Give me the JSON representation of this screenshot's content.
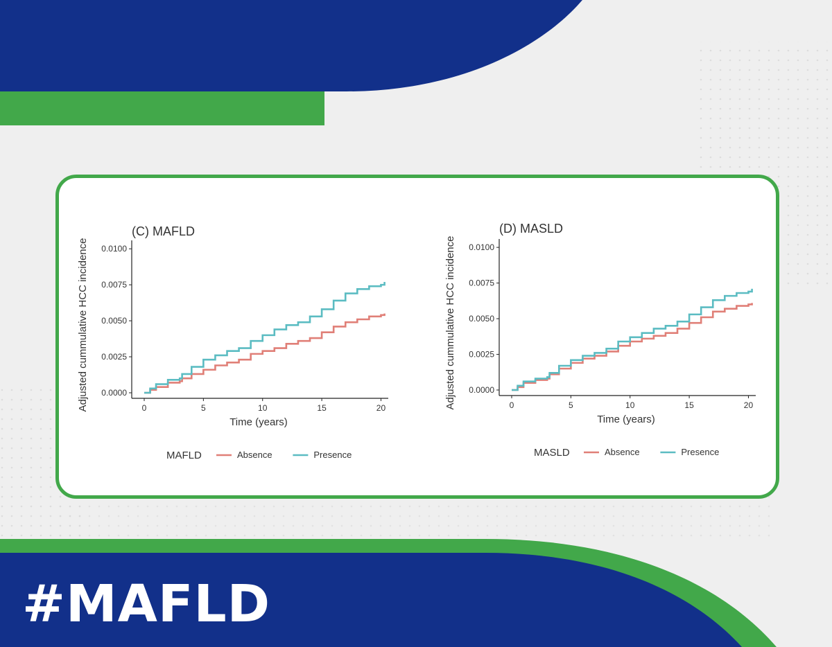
{
  "page": {
    "hashtag": "#MAFLD",
    "colors": {
      "navy": "#12308a",
      "green": "#42a84a",
      "card_border": "#42a84a"
    }
  },
  "chart_data": [
    {
      "type": "line",
      "title": "(C) MAFLD",
      "xlabel": "Time (years)",
      "ylabel": "Adjusted cummulative HCC incidence",
      "xlim": [
        0,
        20.5
      ],
      "ylim": [
        0,
        0.0102
      ],
      "x_ticks": [
        "0",
        "5",
        "10",
        "15",
        "20"
      ],
      "y_ticks": [
        "0.0000",
        "0.0025",
        "0.0050",
        "0.0075",
        "0.0100"
      ],
      "legend_title": "MAFLD",
      "legend_position": "bottom",
      "series": [
        {
          "name": "Absence",
          "color": "#e07f77",
          "points": [
            [
              0,
              0
            ],
            [
              0.5,
              0.0002
            ],
            [
              1,
              0.0004
            ],
            [
              2,
              0.0007
            ],
            [
              3,
              0.0008
            ],
            [
              3.2,
              0.001
            ],
            [
              4,
              0.0013
            ],
            [
              5,
              0.0016
            ],
            [
              6,
              0.0019
            ],
            [
              7,
              0.0021
            ],
            [
              8,
              0.0023
            ],
            [
              9,
              0.0027
            ],
            [
              10,
              0.0029
            ],
            [
              11,
              0.0031
            ],
            [
              12,
              0.0034
            ],
            [
              13,
              0.0036
            ],
            [
              14,
              0.0038
            ],
            [
              15,
              0.0042
            ],
            [
              16,
              0.0046
            ],
            [
              17,
              0.0049
            ],
            [
              18,
              0.0051
            ],
            [
              19,
              0.0053
            ],
            [
              20,
              0.0054
            ],
            [
              20.3,
              0.0055
            ]
          ]
        },
        {
          "name": "Presence",
          "color": "#5bbcc2",
          "points": [
            [
              0,
              0
            ],
            [
              0.5,
              0.0003
            ],
            [
              1,
              0.0006
            ],
            [
              2,
              0.0009
            ],
            [
              3,
              0.001
            ],
            [
              3.2,
              0.0013
            ],
            [
              4,
              0.0018
            ],
            [
              5,
              0.0023
            ],
            [
              6,
              0.0026
            ],
            [
              7,
              0.0029
            ],
            [
              8,
              0.0031
            ],
            [
              9,
              0.0036
            ],
            [
              10,
              0.004
            ],
            [
              11,
              0.0044
            ],
            [
              12,
              0.0047
            ],
            [
              13,
              0.0049
            ],
            [
              14,
              0.0053
            ],
            [
              15,
              0.0058
            ],
            [
              16,
              0.0064
            ],
            [
              17,
              0.0069
            ],
            [
              18,
              0.0072
            ],
            [
              19,
              0.0074
            ],
            [
              20,
              0.0075
            ],
            [
              20.3,
              0.0077
            ]
          ]
        }
      ]
    },
    {
      "type": "line",
      "title": "(D) MASLD",
      "xlabel": "Time (years)",
      "ylabel": "Adjusted cummulative HCC incidence",
      "xlim": [
        0,
        20.5
      ],
      "ylim": [
        0,
        0.0102
      ],
      "x_ticks": [
        "0",
        "5",
        "10",
        "15",
        "20"
      ],
      "y_ticks": [
        "0.0000",
        "0.0025",
        "0.0050",
        "0.0075",
        "0.0100"
      ],
      "legend_title": "MASLD",
      "legend_position": "bottom",
      "series": [
        {
          "name": "Absence",
          "color": "#e07f77",
          "points": [
            [
              0,
              0
            ],
            [
              0.5,
              0.0002
            ],
            [
              1,
              0.0005
            ],
            [
              2,
              0.0007
            ],
            [
              3,
              0.0008
            ],
            [
              3.2,
              0.0011
            ],
            [
              4,
              0.0015
            ],
            [
              5,
              0.0019
            ],
            [
              6,
              0.0022
            ],
            [
              7,
              0.0024
            ],
            [
              8,
              0.0027
            ],
            [
              9,
              0.0031
            ],
            [
              10,
              0.0034
            ],
            [
              11,
              0.0036
            ],
            [
              12,
              0.0038
            ],
            [
              13,
              0.004
            ],
            [
              14,
              0.0043
            ],
            [
              15,
              0.0047
            ],
            [
              16,
              0.0051
            ],
            [
              17,
              0.0055
            ],
            [
              18,
              0.0057
            ],
            [
              19,
              0.0059
            ],
            [
              20,
              0.006
            ],
            [
              20.3,
              0.0061
            ]
          ]
        },
        {
          "name": "Presence",
          "color": "#5bbcc2",
          "points": [
            [
              0,
              0
            ],
            [
              0.5,
              0.0003
            ],
            [
              1,
              0.0006
            ],
            [
              2,
              0.0008
            ],
            [
              3,
              0.0009
            ],
            [
              3.2,
              0.0012
            ],
            [
              4,
              0.0017
            ],
            [
              5,
              0.0021
            ],
            [
              6,
              0.0024
            ],
            [
              7,
              0.0026
            ],
            [
              8,
              0.0029
            ],
            [
              9,
              0.0034
            ],
            [
              10,
              0.0037
            ],
            [
              11,
              0.004
            ],
            [
              12,
              0.0043
            ],
            [
              13,
              0.0045
            ],
            [
              14,
              0.0048
            ],
            [
              15,
              0.0053
            ],
            [
              16,
              0.0058
            ],
            [
              17,
              0.0063
            ],
            [
              18,
              0.0066
            ],
            [
              19,
              0.0068
            ],
            [
              20,
              0.0069
            ],
            [
              20.3,
              0.0071
            ]
          ]
        }
      ]
    }
  ]
}
